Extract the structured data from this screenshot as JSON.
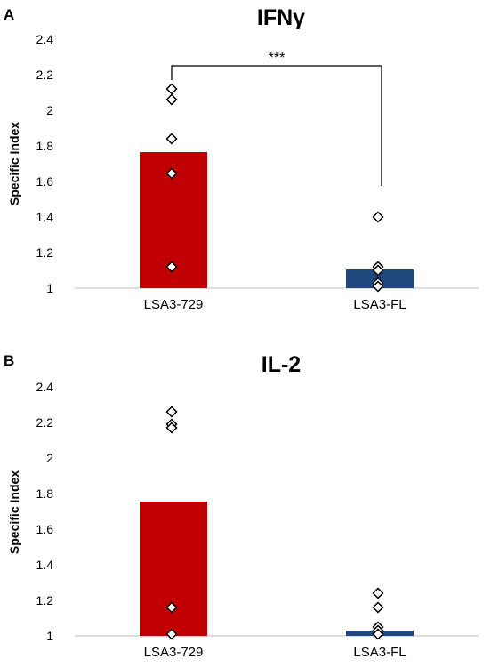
{
  "chart_data": [
    {
      "type": "bar",
      "panel": "A",
      "title": "IFNγ",
      "ylabel": "Specific  Index",
      "xlabel": "",
      "ylim": [
        1,
        2.4
      ],
      "yticks": [
        "1",
        "1.2",
        "1.4",
        "1.6",
        "1.8",
        "2",
        "2.2",
        "2.4"
      ],
      "categories": [
        "LSA3-729",
        "LSA3-FL"
      ],
      "values": [
        1.765,
        1.105
      ],
      "bar_colors": [
        "#c00000",
        "#1f497d"
      ],
      "points": [
        [
          2.12,
          2.06,
          1.84,
          1.645,
          1.12
        ],
        [
          1.4,
          1.12,
          1.1,
          1.03,
          1.01
        ]
      ],
      "significance": {
        "from": 0,
        "to": 1,
        "label": "***",
        "y": 2.25
      }
    },
    {
      "type": "bar",
      "panel": "B",
      "title": "IL-2",
      "ylabel": "Specific  Index",
      "xlabel": "",
      "ylim": [
        1,
        2.4
      ],
      "yticks": [
        "1",
        "1.2",
        "1.4",
        "1.6",
        "1.8",
        "2",
        "2.2",
        "2.4"
      ],
      "categories": [
        "LSA3-729",
        "LSA3-FL"
      ],
      "values": [
        1.755,
        1.03
      ],
      "bar_colors": [
        "#c00000",
        "#1f497d"
      ],
      "points": [
        [
          2.26,
          2.19,
          2.17,
          1.16,
          1.01
        ],
        [
          1.24,
          1.16,
          1.05,
          1.03,
          1.01
        ]
      ]
    }
  ]
}
